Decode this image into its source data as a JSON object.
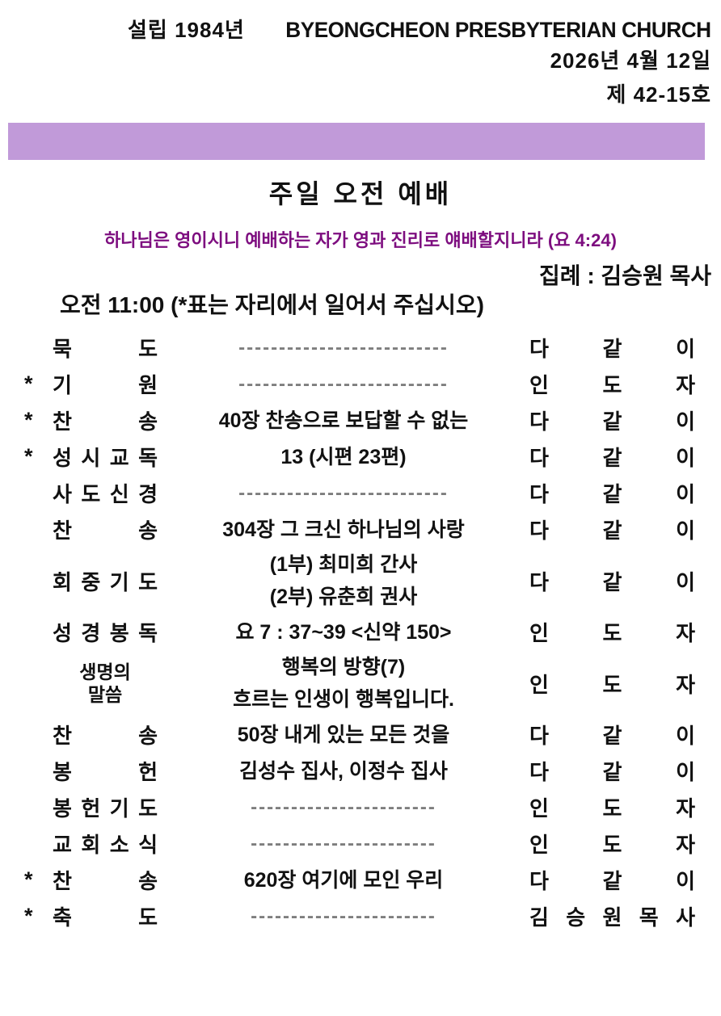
{
  "header": {
    "founded": "설립 1984년",
    "church_name": "BYEONGCHEON PRESBYTERIAN CHURCH",
    "date": "2026년 4월 12일",
    "issue_no": "제 42-15호"
  },
  "service": {
    "title": "주일 오전 예배",
    "scripture": "하나님은 영이시니 예배하는 자가 영과 진리로 얘배할지니라 (요 4:24)",
    "officiant": "집례 : 김승원 목사",
    "time_note": "오전 11:00 (*표는 자리에서 일어서 주십시오)"
  },
  "colors": {
    "banner": "#c19ad9",
    "scripture_text": "#7d0d7f",
    "dash": "#7e7e7e",
    "text": "#111111"
  },
  "order": {
    "rows": [
      {
        "star": "",
        "title": "묵 도",
        "content": [
          "--------------------------"
        ],
        "performer": "다 같 이"
      },
      {
        "star": "*",
        "title": "기 원",
        "content": [
          "--------------------------"
        ],
        "performer": "인 도 자"
      },
      {
        "star": "*",
        "title": "찬 송",
        "content": [
          "40장 찬송으로 보답할 수 없는"
        ],
        "performer": "다 같 이"
      },
      {
        "star": "*",
        "title": "성 시 교 독",
        "content": [
          "13 (시편 23편)"
        ],
        "performer": "다 같 이"
      },
      {
        "star": "",
        "title": "사 도 신 경",
        "content": [
          "--------------------------"
        ],
        "performer": "다 같 이"
      },
      {
        "star": "",
        "title": "찬 송",
        "content": [
          "304장 그 크신 하나님의 사랑"
        ],
        "performer": "다 같 이"
      },
      {
        "star": "",
        "title": "회 중 기 도",
        "content": [
          "(1부) 최미희 간사",
          "(2부) 유춘희 권사"
        ],
        "performer": "다 같 이"
      },
      {
        "star": "",
        "title": "성 경 봉 독",
        "content": [
          "요 7 : 37~39 <신약 150>"
        ],
        "performer": "인 도 자"
      },
      {
        "star": "",
        "title_lines": [
          "생명의",
          "말씀"
        ],
        "content": [
          "행복의 방향(7)",
          "흐르는 인생이 행복입니다."
        ],
        "performer": "인 도 자"
      },
      {
        "star": "",
        "title": "찬 송",
        "content": [
          "50장 내게 있는 모든 것을"
        ],
        "performer": "다 같 이"
      },
      {
        "star": "",
        "title": "봉 헌",
        "content": [
          "김성수 집사, 이정수 집사"
        ],
        "performer": "다 같 이"
      },
      {
        "star": "",
        "title": "봉 헌 기 도",
        "content": [
          "-----------------------"
        ],
        "performer": "인 도 자"
      },
      {
        "star": "",
        "title": "교 회 소 식",
        "content": [
          "-----------------------"
        ],
        "performer": "인 도 자"
      },
      {
        "star": "*",
        "title": "찬 송",
        "content": [
          "620장 여기에 모인 우리"
        ],
        "performer": "다 같 이"
      },
      {
        "star": "*",
        "title": "축 도",
        "content": [
          "-----------------------"
        ],
        "performer": "김 승 원 목 사"
      }
    ]
  }
}
